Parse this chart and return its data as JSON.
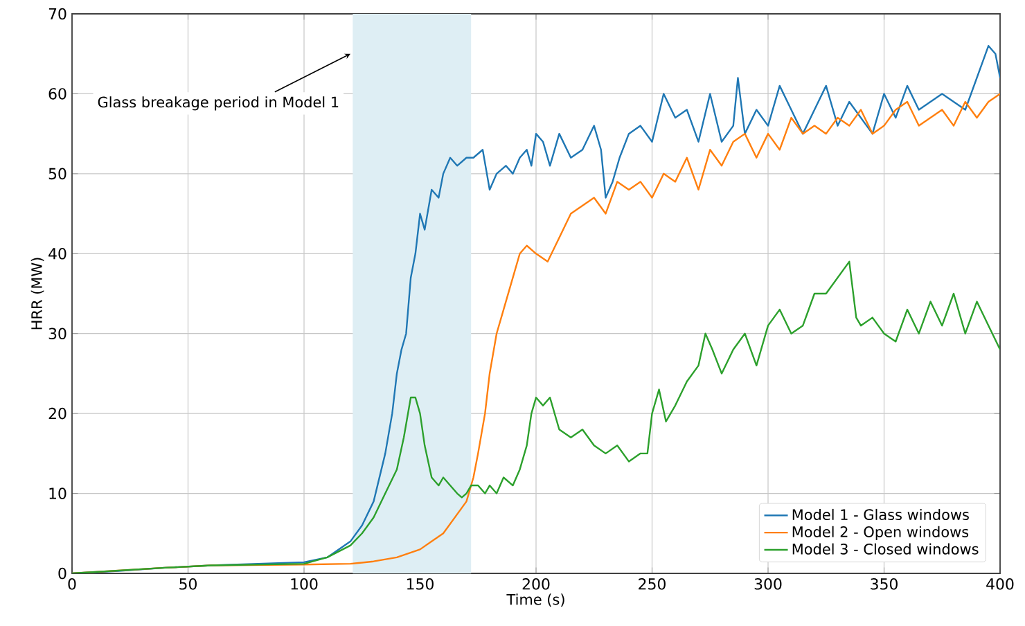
{
  "chart_data": {
    "type": "line",
    "xlabel": "Time (s)",
    "ylabel": "HRR (MW)",
    "xlim": [
      0,
      400
    ],
    "ylim": [
      0,
      70
    ],
    "xticks": [
      0,
      50,
      100,
      150,
      200,
      250,
      300,
      350,
      400
    ],
    "yticks": [
      0,
      10,
      20,
      30,
      40,
      50,
      60,
      70
    ],
    "grid": true,
    "legend": "bottom right",
    "marker": "none",
    "line_style": "solid",
    "bands": [
      {
        "axis": "x",
        "from": 121,
        "to": 172,
        "color": "#deeef4"
      }
    ],
    "annotations": [
      {
        "text": "Glass breakage period in Model 1",
        "x": 120,
        "y": 65
      }
    ],
    "series": [
      {
        "name": "Model 1 - Glass windows",
        "color": "#1f77b4",
        "x": [
          0,
          20,
          40,
          60,
          100,
          110,
          120,
          125,
          130,
          135,
          138,
          140,
          142,
          144,
          146,
          148,
          150,
          152,
          155,
          158,
          160,
          163,
          166,
          170,
          173,
          177,
          180,
          183,
          187,
          190,
          193,
          196,
          198,
          200,
          203,
          206,
          210,
          215,
          220,
          225,
          228,
          230,
          233,
          236,
          240,
          245,
          250,
          255,
          260,
          265,
          270,
          275,
          280,
          285,
          287,
          290,
          295,
          300,
          305,
          310,
          315,
          320,
          325,
          330,
          335,
          340,
          345,
          350,
          355,
          360,
          365,
          370,
          375,
          380,
          385,
          390,
          395,
          398,
          400
        ],
        "values": [
          0,
          0.3,
          0.7,
          1.0,
          1.4,
          2,
          4,
          6,
          9,
          15,
          20,
          25,
          28,
          30,
          37,
          40,
          45,
          43,
          48,
          47,
          50,
          52,
          51,
          52,
          52,
          53,
          48,
          50,
          51,
          50,
          52,
          53,
          51,
          55,
          54,
          51,
          55,
          52,
          53,
          56,
          53,
          47,
          49,
          52,
          55,
          56,
          54,
          60,
          57,
          58,
          54,
          60,
          54,
          56,
          62,
          55,
          58,
          56,
          61,
          58,
          55,
          58,
          61,
          56,
          59,
          57,
          55,
          60,
          57,
          61,
          58,
          59,
          60,
          59,
          58,
          62,
          66,
          65,
          62
        ]
      },
      {
        "name": "Model 2 - Open windows",
        "color": "#ff7f0e",
        "x": [
          0,
          40,
          60,
          100,
          120,
          130,
          140,
          150,
          155,
          160,
          165,
          170,
          173,
          175,
          178,
          180,
          183,
          186,
          190,
          193,
          196,
          200,
          205,
          210,
          215,
          220,
          225,
          230,
          235,
          240,
          245,
          250,
          255,
          260,
          265,
          270,
          275,
          280,
          285,
          290,
          295,
          300,
          305,
          310,
          315,
          320,
          325,
          330,
          335,
          340,
          345,
          350,
          355,
          360,
          365,
          370,
          375,
          380,
          385,
          390,
          395,
          400
        ],
        "values": [
          0,
          0.7,
          1,
          1.1,
          1.2,
          1.5,
          2,
          3,
          4,
          5,
          7,
          9,
          12,
          15,
          20,
          25,
          30,
          33,
          37,
          40,
          41,
          40,
          39,
          42,
          45,
          46,
          47,
          45,
          49,
          48,
          49,
          47,
          50,
          49,
          52,
          48,
          53,
          51,
          54,
          55,
          52,
          55,
          53,
          57,
          55,
          56,
          55,
          57,
          56,
          58,
          55,
          56,
          58,
          59,
          56,
          57,
          58,
          56,
          59,
          57,
          59,
          60
        ]
      },
      {
        "name": "Model 3 - Closed windows",
        "color": "#2ca02c",
        "x": [
          0,
          40,
          60,
          100,
          110,
          120,
          125,
          130,
          135,
          140,
          143,
          146,
          148,
          150,
          152,
          155,
          158,
          160,
          163,
          166,
          168,
          170,
          172,
          175,
          178,
          180,
          183,
          186,
          190,
          193,
          196,
          198,
          200,
          203,
          206,
          210,
          215,
          220,
          225,
          230,
          235,
          240,
          245,
          248,
          250,
          253,
          256,
          260,
          265,
          270,
          273,
          276,
          280,
          285,
          290,
          295,
          300,
          305,
          310,
          315,
          320,
          325,
          330,
          335,
          338,
          340,
          345,
          350,
          355,
          360,
          365,
          370,
          375,
          380,
          385,
          390,
          395,
          400
        ],
        "values": [
          0,
          0.7,
          1,
          1.2,
          2,
          3.5,
          5,
          7,
          10,
          13,
          17,
          22,
          22,
          20,
          16,
          12,
          11,
          12,
          11,
          10,
          9.5,
          10,
          11,
          11,
          10,
          11,
          10,
          12,
          11,
          13,
          16,
          20,
          22,
          21,
          22,
          18,
          17,
          18,
          16,
          15,
          16,
          14,
          15,
          15,
          20,
          23,
          19,
          21,
          24,
          26,
          30,
          28,
          25,
          28,
          30,
          26,
          31,
          33,
          30,
          31,
          35,
          35,
          37,
          39,
          32,
          31,
          32,
          30,
          29,
          33,
          30,
          34,
          31,
          35,
          30,
          34,
          31,
          28
        ]
      }
    ]
  }
}
